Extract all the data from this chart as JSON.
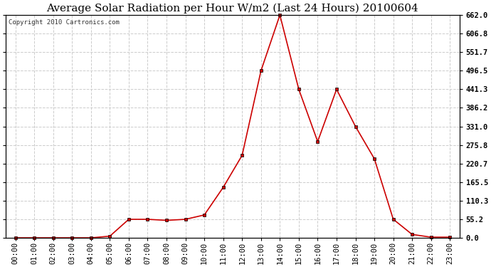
{
  "title": "Average Solar Radiation per Hour W/m2 (Last 24 Hours) 20100604",
  "copyright": "Copyright 2010 Cartronics.com",
  "hours": [
    "00:00",
    "01:00",
    "02:00",
    "03:00",
    "04:00",
    "05:00",
    "06:00",
    "07:00",
    "08:00",
    "09:00",
    "10:00",
    "11:00",
    "12:00",
    "13:00",
    "14:00",
    "15:00",
    "16:00",
    "17:00",
    "18:00",
    "19:00",
    "20:00",
    "21:00",
    "22:00",
    "23:00"
  ],
  "values": [
    0.0,
    0.0,
    0.0,
    0.0,
    0.0,
    5.0,
    55.0,
    55.0,
    52.0,
    55.0,
    68.0,
    150.0,
    245.0,
    496.5,
    662.0,
    441.3,
    286.0,
    441.3,
    331.0,
    235.0,
    55.2,
    10.0,
    2.0,
    2.0
  ],
  "line_color": "#cc0000",
  "marker": "s",
  "marker_size": 3,
  "background_color": "#ffffff",
  "grid_color": "#cccccc",
  "ylim": [
    0.0,
    662.0
  ],
  "yticks": [
    0.0,
    55.2,
    110.3,
    165.5,
    220.7,
    275.8,
    331.0,
    386.2,
    441.3,
    496.5,
    551.7,
    606.8,
    662.0
  ],
  "title_fontsize": 11,
  "tick_fontsize": 7.5,
  "copyright_fontsize": 6.5
}
